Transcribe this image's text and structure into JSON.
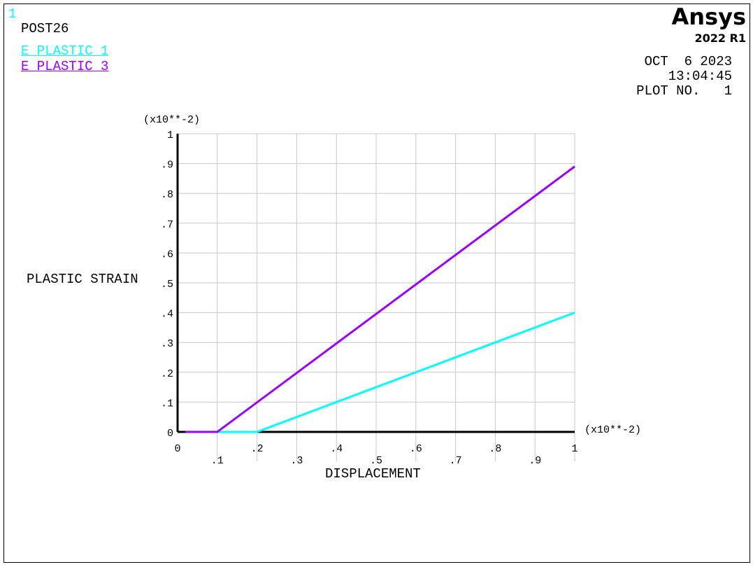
{
  "window_number": "1",
  "program": "POST26",
  "logo": {
    "brand": "Ansys",
    "version": "2022 R1"
  },
  "date": "OCT  6 2023",
  "time": "13:04:45",
  "plot_no": "PLOT NO.   1",
  "colors": {
    "E_PLASTIC_1": "#00ffff",
    "E_PLASTIC_3": "#9900ff",
    "grid": "#c8c8c8",
    "axes": "#000000"
  },
  "chart_data": {
    "type": "line",
    "xlabel": "DISPLACEMENT",
    "ylabel": "PLASTIC STRAIN",
    "x_multiplier": "(x10**-2)",
    "y_multiplier": "(x10**-2)",
    "xlim": [
      0,
      1
    ],
    "ylim": [
      0,
      1
    ],
    "grid": true,
    "legend_placement": "top-left",
    "x_ticks": [
      "0",
      ".1",
      ".2",
      ".3",
      ".4",
      ".5",
      ".6",
      ".7",
      ".8",
      ".9",
      "1"
    ],
    "y_ticks": [
      "0",
      ".1",
      ".2",
      ".3",
      ".4",
      ".5",
      ".6",
      ".7",
      ".8",
      ".9",
      "1"
    ],
    "series": [
      {
        "name": "E_PLASTIC_1",
        "color": "#00ffff",
        "x": [
          0.1,
          0.2,
          1.0
        ],
        "y": [
          0,
          0,
          0.4
        ]
      },
      {
        "name": "E_PLASTIC_3",
        "color": "#9900ff",
        "x": [
          0.02,
          0.1,
          1.0
        ],
        "y": [
          0,
          0,
          0.89
        ]
      }
    ]
  }
}
